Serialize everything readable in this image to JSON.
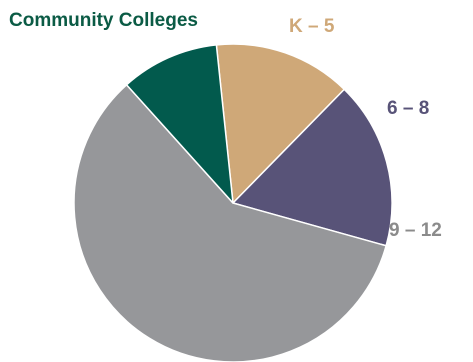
{
  "chart_data": {
    "type": "pie",
    "title": "",
    "slices": [
      {
        "label": "K – 5",
        "value": 14,
        "color": "#CFA878"
      },
      {
        "label": "6 – 8",
        "value": 17,
        "color": "#585378"
      },
      {
        "label": "9 – 12",
        "value": 59,
        "color": "#96979A"
      },
      {
        "label": "Community Colleges",
        "value": 10,
        "color": "#025A4D"
      }
    ],
    "start_angle_deg": -96,
    "direction": "clockwise",
    "legend": "none",
    "label_colors": {
      "K – 5": "#CFA878",
      "6 – 8": "#585378",
      "9 – 12": "#8B8B8B",
      "Community Colleges": "#0B5B45"
    }
  }
}
